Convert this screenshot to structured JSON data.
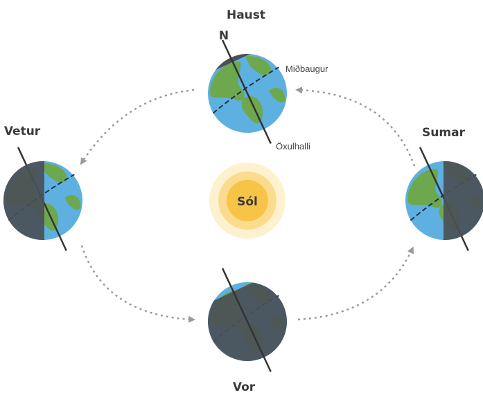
{
  "title_labels": {
    "autumn": "Haust",
    "winter": "Vetur",
    "summer": "Sumar",
    "spring": "Vor"
  },
  "sun": "Sól",
  "annotations": {
    "north": "N",
    "equator": "Miðbaugur",
    "axial_tilt": "Öxulhalli"
  }
}
